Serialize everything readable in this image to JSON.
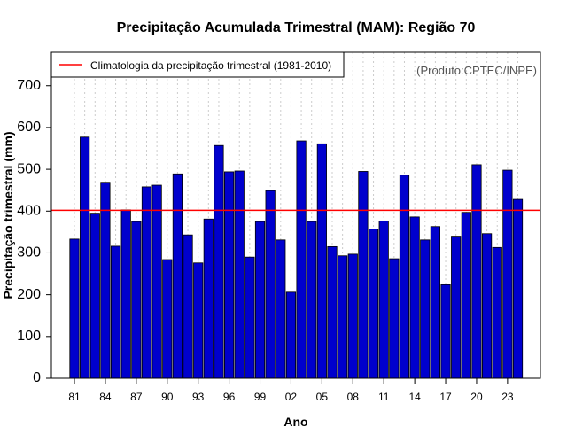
{
  "chart_data": {
    "type": "bar",
    "title": "Precipitação Acumulada Trimestral (MAM): Região 70",
    "xlabel": "Ano",
    "ylabel": "Precipitação trimestral (mm)",
    "credit": "(Produto:CPTEC/INPE)",
    "ylim": [
      0,
      780
    ],
    "yticks": [
      0,
      100,
      200,
      300,
      400,
      500,
      600,
      700
    ],
    "grid": "vertical dotted",
    "legend": {
      "position": "top-left",
      "entries": [
        {
          "label": "Climatologia da precipitação trimestral (1981-2010)",
          "color": "#ff0000"
        }
      ]
    },
    "categories": [
      "81",
      "82",
      "83",
      "84",
      "85",
      "86",
      "87",
      "88",
      "89",
      "90",
      "91",
      "92",
      "93",
      "94",
      "95",
      "96",
      "97",
      "98",
      "99",
      "00",
      "01",
      "02",
      "03",
      "04",
      "05",
      "06",
      "07",
      "08",
      "09",
      "10",
      "11",
      "12",
      "13",
      "14",
      "15",
      "16",
      "17",
      "18",
      "19",
      "20",
      "21",
      "22",
      "23",
      "24"
    ],
    "x_tick_labels": [
      "81",
      "84",
      "87",
      "90",
      "93",
      "96",
      "99",
      "02",
      "05",
      "08",
      "11",
      "14",
      "17",
      "20",
      "23"
    ],
    "x_tick_indices": [
      0,
      3,
      6,
      9,
      12,
      15,
      18,
      21,
      24,
      27,
      30,
      33,
      36,
      39,
      42
    ],
    "values": [
      333,
      577,
      395,
      469,
      316,
      403,
      375,
      458,
      462,
      284,
      489,
      343,
      276,
      381,
      557,
      494,
      496,
      290,
      375,
      449,
      331,
      206,
      568,
      375,
      561,
      315,
      293,
      297,
      495,
      357,
      376,
      286,
      486,
      386,
      331,
      363,
      224,
      340,
      397,
      511,
      346,
      313,
      498,
      428
    ],
    "reference_line": {
      "name": "Climatologia da precipitação trimestral (1981-2010)",
      "value": 402
    },
    "colors": {
      "bar_fill": "#0000cd",
      "bar_stroke": "#000000",
      "reference": "#ff0000",
      "grid": "#cccccc"
    }
  }
}
